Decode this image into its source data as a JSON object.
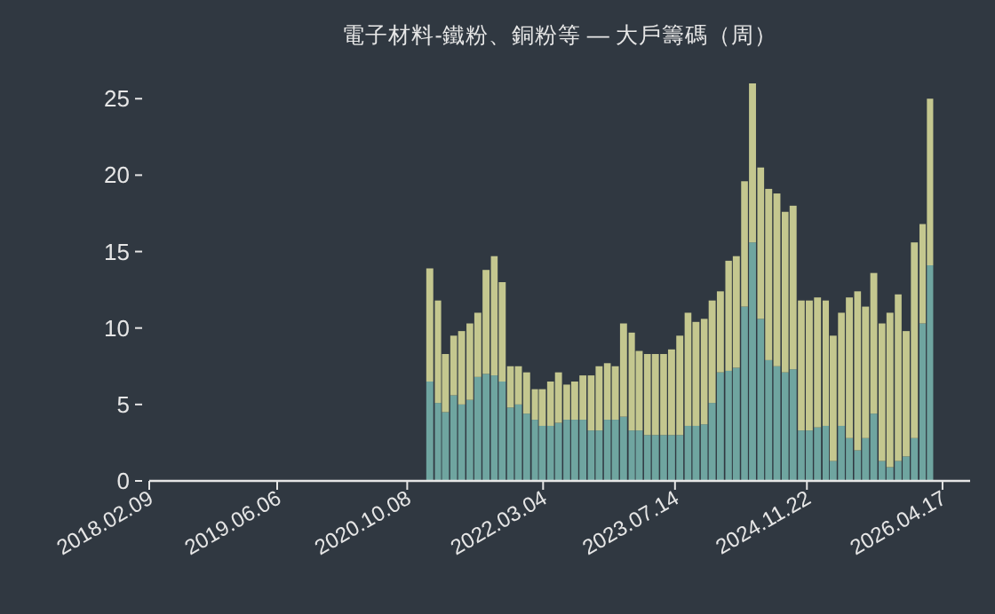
{
  "chart_data": {
    "type": "bar",
    "title": "電子材料-鐵粉、銅粉等 — 大戶籌碼（周）",
    "stacked": true,
    "x": [
      "2021-01",
      "2021-02",
      "2021-03",
      "2021-04",
      "2021-05",
      "2021-06",
      "2021-07",
      "2021-08",
      "2021-09",
      "2021-10",
      "2021-11",
      "2021-12",
      "2022-01",
      "2022-02",
      "2022-03",
      "2022-04",
      "2022-05",
      "2022-06",
      "2022-07",
      "2022-08",
      "2022-09",
      "2022-10",
      "2022-11",
      "2022-12",
      "2023-01",
      "2023-02",
      "2023-03",
      "2023-04",
      "2023-05",
      "2023-06",
      "2023-07",
      "2023-08",
      "2023-09",
      "2023-10",
      "2023-11",
      "2023-12",
      "2024-01",
      "2024-02",
      "2024-03",
      "2024-04",
      "2024-05",
      "2024-06",
      "2024-07",
      "2024-08",
      "2024-09",
      "2024-10",
      "2024-11",
      "2024-12",
      "2025-01",
      "2025-02",
      "2025-03",
      "2025-04",
      "2025-05",
      "2025-06",
      "2025-07",
      "2025-08",
      "2025-09",
      "2025-10",
      "2025-11",
      "2025-12",
      "2026-01",
      "2026-02",
      "2026-03"
    ],
    "series": [
      {
        "color": "#6fa5a0",
        "values": [
          6.5,
          5.1,
          4.5,
          5.6,
          5.0,
          5.3,
          6.8,
          7.0,
          6.9,
          6.5,
          4.8,
          5.0,
          4.4,
          4.0,
          3.6,
          3.6,
          3.8,
          4.0,
          4.0,
          4.0,
          3.3,
          3.3,
          4.0,
          4.0,
          4.2,
          3.3,
          3.3,
          3.0,
          3.0,
          3.0,
          3.0,
          3.0,
          3.6,
          3.6,
          3.7,
          5.1,
          7.1,
          7.2,
          7.4,
          11.4,
          15.6,
          10.6,
          7.9,
          7.5,
          7.1,
          7.3,
          3.3,
          3.3,
          3.5,
          3.6,
          1.3,
          3.6,
          2.8,
          2.0,
          2.8,
          4.4,
          1.3,
          0.9,
          1.3,
          1.6,
          2.8,
          10.3,
          14.1
        ]
      },
      {
        "color": "#c4c78f",
        "values": [
          7.4,
          6.7,
          3.8,
          3.9,
          4.8,
          5.0,
          4.2,
          6.8,
          7.8,
          6.5,
          2.7,
          2.5,
          2.7,
          2.0,
          2.4,
          2.9,
          3.3,
          2.3,
          2.5,
          2.9,
          3.6,
          4.2,
          3.7,
          3.5,
          6.1,
          6.4,
          5.2,
          5.3,
          5.3,
          5.3,
          5.6,
          6.5,
          7.4,
          6.8,
          6.9,
          6.7,
          5.3,
          7.2,
          7.3,
          8.2,
          10.4,
          9.9,
          11.2,
          11.3,
          10.5,
          10.7,
          8.5,
          8.5,
          8.5,
          8.2,
          8.2,
          7.4,
          9.2,
          10.4,
          8.6,
          9.2,
          9.0,
          10.1,
          10.9,
          8.2,
          12.8,
          6.5,
          10.9
        ]
      }
    ],
    "xlim": [
      "2018-02-09",
      "2026-07-30"
    ],
    "xticks": [
      {
        "value": "2018-02-09",
        "label": "2018.02.09"
      },
      {
        "value": "2019-06-06",
        "label": "2019.06.06"
      },
      {
        "value": "2020-10-08",
        "label": "2020.10.08"
      },
      {
        "value": "2022-03-04",
        "label": "2022.03.04"
      },
      {
        "value": "2023-07-14",
        "label": "2023.07.14"
      },
      {
        "value": "2024-11-22",
        "label": "2024.11.22"
      },
      {
        "value": "2026-04-17",
        "label": "2026.04.17"
      }
    ],
    "ylim": [
      0,
      26
    ],
    "yticks": [
      0,
      5,
      10,
      15,
      20,
      25
    ],
    "grid": false
  }
}
